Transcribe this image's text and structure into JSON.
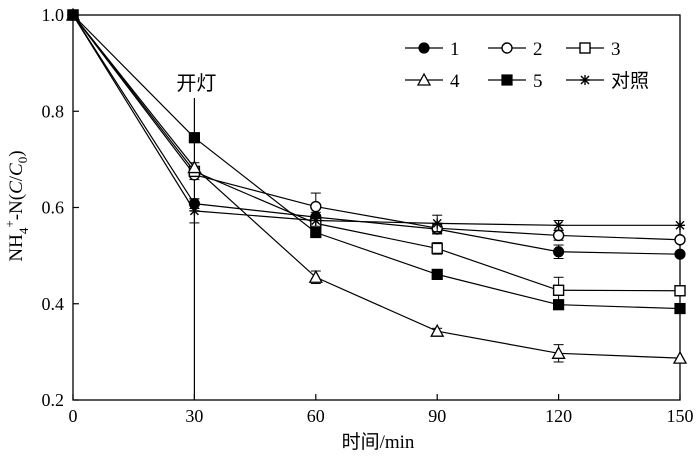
{
  "chart_data": {
    "type": "line",
    "x": [
      0,
      30,
      60,
      90,
      120,
      150
    ],
    "series": [
      {
        "name": "1",
        "marker": "circle-filled",
        "values": [
          1.0,
          0.608,
          0.58,
          0.555,
          0.508,
          0.503
        ],
        "errors": [
          0,
          0.01,
          0.01,
          0.01,
          0.014,
          0
        ]
      },
      {
        "name": "2",
        "marker": "circle-open",
        "values": [
          1.0,
          0.668,
          0.602,
          0.557,
          0.542,
          0.533
        ],
        "errors": [
          0,
          0.01,
          0.028,
          0.01,
          0.01,
          0
        ]
      },
      {
        "name": "3",
        "marker": "square-open",
        "values": [
          1.0,
          0.675,
          0.567,
          0.515,
          0.428,
          0.427
        ],
        "errors": [
          0,
          0.01,
          0.01,
          0.012,
          0.027,
          0
        ]
      },
      {
        "name": "4",
        "marker": "triangle-open",
        "values": [
          1.0,
          0.683,
          0.455,
          0.343,
          0.297,
          0.287
        ],
        "errors": [
          0,
          0.01,
          0.013,
          0.006,
          0.018,
          0
        ]
      },
      {
        "name": "5",
        "marker": "square-filled",
        "values": [
          1.0,
          0.745,
          0.548,
          0.461,
          0.398,
          0.39
        ],
        "errors": [
          0,
          0.01,
          0.01,
          0.005,
          0.005,
          0
        ]
      },
      {
        "name": "对照",
        "marker": "star",
        "values": [
          1.0,
          0.593,
          0.573,
          0.567,
          0.563,
          0.563
        ],
        "errors": [
          0,
          0.025,
          0.012,
          0.017,
          0.01,
          0
        ]
      }
    ],
    "xlim": [
      0,
      150
    ],
    "ylim": [
      0.2,
      1.0
    ],
    "xticks": [
      "0",
      "30",
      "60",
      "90",
      "120",
      "150"
    ],
    "yticks": [
      "0.2",
      "0.4",
      "0.6",
      "0.8",
      "1.0"
    ],
    "xlabel": "时间/min",
    "ylabel": "NH4+-N(C/C0)",
    "legend_position": "top-right",
    "annotation": {
      "text": "开灯",
      "x": 30
    },
    "grid": false
  }
}
